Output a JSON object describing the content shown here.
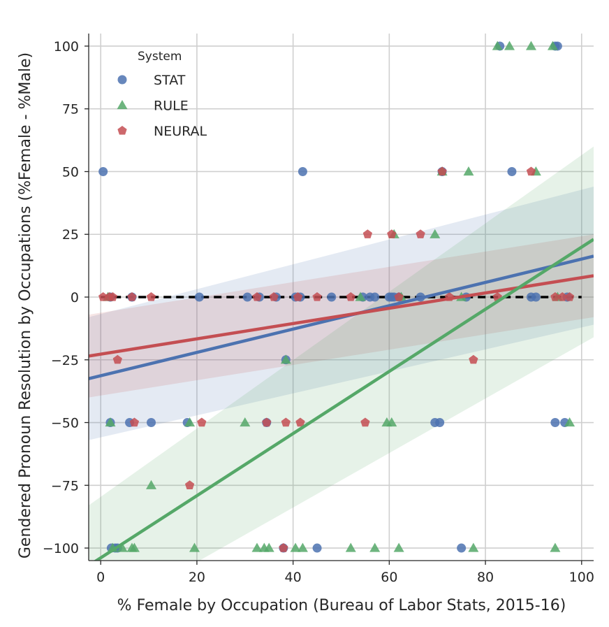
{
  "chart_data": {
    "type": "scatter",
    "xlabel": "% Female by Occupation (Bureau of Labor Stats, 2015-16)",
    "ylabel": "Gendered Pronoun Resolution by Occupations (%Female - %Male)",
    "xlim": [
      -2.5,
      102.5
    ],
    "ylim": [
      -105,
      105
    ],
    "xticks": [
      0,
      20,
      40,
      60,
      80,
      100
    ],
    "yticks": [
      -100,
      -75,
      -50,
      -25,
      0,
      25,
      50,
      75,
      100
    ],
    "xtick_labels": [
      "0",
      "20",
      "40",
      "60",
      "80",
      "100"
    ],
    "ytick_labels": [
      "−100",
      "−75",
      "−50",
      "−25",
      "0",
      "25",
      "50",
      "75",
      "100"
    ],
    "grid": true,
    "legend": {
      "title": "System",
      "position": "top-left"
    },
    "series": [
      {
        "name": "STAT",
        "marker": "circle",
        "color": "#4c72b0",
        "points": [
          [
            0.5,
            50
          ],
          [
            2,
            0
          ],
          [
            2.2,
            -100
          ],
          [
            2,
            -50
          ],
          [
            3,
            -100
          ],
          [
            3.5,
            -100
          ],
          [
            6,
            -50
          ],
          [
            6.5,
            0
          ],
          [
            10.5,
            -50
          ],
          [
            18,
            -50
          ],
          [
            20.5,
            0
          ],
          [
            30.5,
            0
          ],
          [
            33,
            0
          ],
          [
            34.5,
            -50
          ],
          [
            36.5,
            0
          ],
          [
            38,
            -100
          ],
          [
            38.5,
            -25
          ],
          [
            40.5,
            0
          ],
          [
            41.5,
            0
          ],
          [
            42,
            50
          ],
          [
            45,
            -100
          ],
          [
            48,
            0
          ],
          [
            54.5,
            0
          ],
          [
            56,
            0
          ],
          [
            57,
            0
          ],
          [
            60,
            0
          ],
          [
            60.5,
            0
          ],
          [
            61,
            0
          ],
          [
            62,
            0
          ],
          [
            66.5,
            0
          ],
          [
            69.5,
            -50
          ],
          [
            70.5,
            -50
          ],
          [
            71,
            50
          ],
          [
            75,
            -100
          ],
          [
            76,
            0
          ],
          [
            83,
            100
          ],
          [
            85.5,
            50
          ],
          [
            89.5,
            0
          ],
          [
            90.5,
            0
          ],
          [
            94.5,
            100
          ],
          [
            95,
            100
          ],
          [
            94.5,
            -50
          ],
          [
            96.5,
            -50
          ],
          [
            97,
            0
          ]
        ]
      },
      {
        "name": "RULE",
        "marker": "triangle",
        "color": "#55a868",
        "points": [
          [
            1.5,
            0
          ],
          [
            2,
            -50
          ],
          [
            2.5,
            -100
          ],
          [
            4.5,
            -100
          ],
          [
            6.5,
            -100
          ],
          [
            7,
            -100
          ],
          [
            10.5,
            -75
          ],
          [
            18.5,
            -50
          ],
          [
            19.5,
            -100
          ],
          [
            30,
            -50
          ],
          [
            32.5,
            -100
          ],
          [
            34,
            -100
          ],
          [
            35,
            -100
          ],
          [
            38.5,
            -25
          ],
          [
            40.5,
            -100
          ],
          [
            42,
            -100
          ],
          [
            52,
            -100
          ],
          [
            54,
            0
          ],
          [
            57,
            -100
          ],
          [
            59.5,
            -50
          ],
          [
            60.5,
            -50
          ],
          [
            61,
            25
          ],
          [
            62,
            -100
          ],
          [
            62.5,
            0
          ],
          [
            69.5,
            25
          ],
          [
            71,
            50
          ],
          [
            75,
            0
          ],
          [
            76.5,
            50
          ],
          [
            77.5,
            -100
          ],
          [
            82.5,
            100
          ],
          [
            85,
            100
          ],
          [
            89.5,
            100
          ],
          [
            90.5,
            50
          ],
          [
            94,
            100
          ],
          [
            94.5,
            -100
          ],
          [
            95,
            0
          ],
          [
            97.5,
            -50
          ]
        ]
      },
      {
        "name": "NEURAL",
        "marker": "pentagon",
        "color": "#c44e52",
        "points": [
          [
            0.5,
            0
          ],
          [
            1.8,
            0
          ],
          [
            2.5,
            0
          ],
          [
            3.5,
            -25
          ],
          [
            6.5,
            0
          ],
          [
            7,
            -50
          ],
          [
            10.5,
            0
          ],
          [
            18.5,
            -75
          ],
          [
            21,
            -50
          ],
          [
            32.5,
            0
          ],
          [
            34.5,
            -50
          ],
          [
            36,
            0
          ],
          [
            38,
            -100
          ],
          [
            38.5,
            -50
          ],
          [
            41,
            0
          ],
          [
            41.5,
            -50
          ],
          [
            45,
            0
          ],
          [
            52,
            0
          ],
          [
            55,
            -50
          ],
          [
            55.5,
            25
          ],
          [
            60.5,
            25
          ],
          [
            62,
            0
          ],
          [
            66.5,
            25
          ],
          [
            71,
            50
          ],
          [
            72.5,
            0
          ],
          [
            77.5,
            -25
          ],
          [
            82.5,
            0
          ],
          [
            89.5,
            50
          ],
          [
            94.5,
            0
          ],
          [
            96,
            0
          ],
          [
            97.5,
            0
          ]
        ]
      }
    ],
    "reference_line": {
      "y": 0,
      "style": "dashed",
      "color": "#000000"
    },
    "regression_lines": [
      {
        "series": "STAT",
        "x": [
          -2.5,
          102.5
        ],
        "y": [
          -32.5,
          16.3
        ],
        "ci_upper": [
          -8,
          44
        ],
        "ci_lower": [
          -57,
          -11
        ],
        "color": "#4c72b0"
      },
      {
        "series": "NEURAL",
        "x": [
          -2.5,
          102.5
        ],
        "y": [
          -23.5,
          8.5
        ],
        "ci_upper": [
          -7,
          25
        ],
        "ci_lower": [
          -40,
          -8
        ],
        "color": "#c44e52"
      },
      {
        "series": "RULE",
        "x": [
          -2.5,
          102.5
        ],
        "y": [
          -107,
          23
        ],
        "ci_upper": [
          -83,
          60
        ],
        "ci_lower": [
          -130,
          -16
        ],
        "color": "#55a868"
      }
    ]
  }
}
